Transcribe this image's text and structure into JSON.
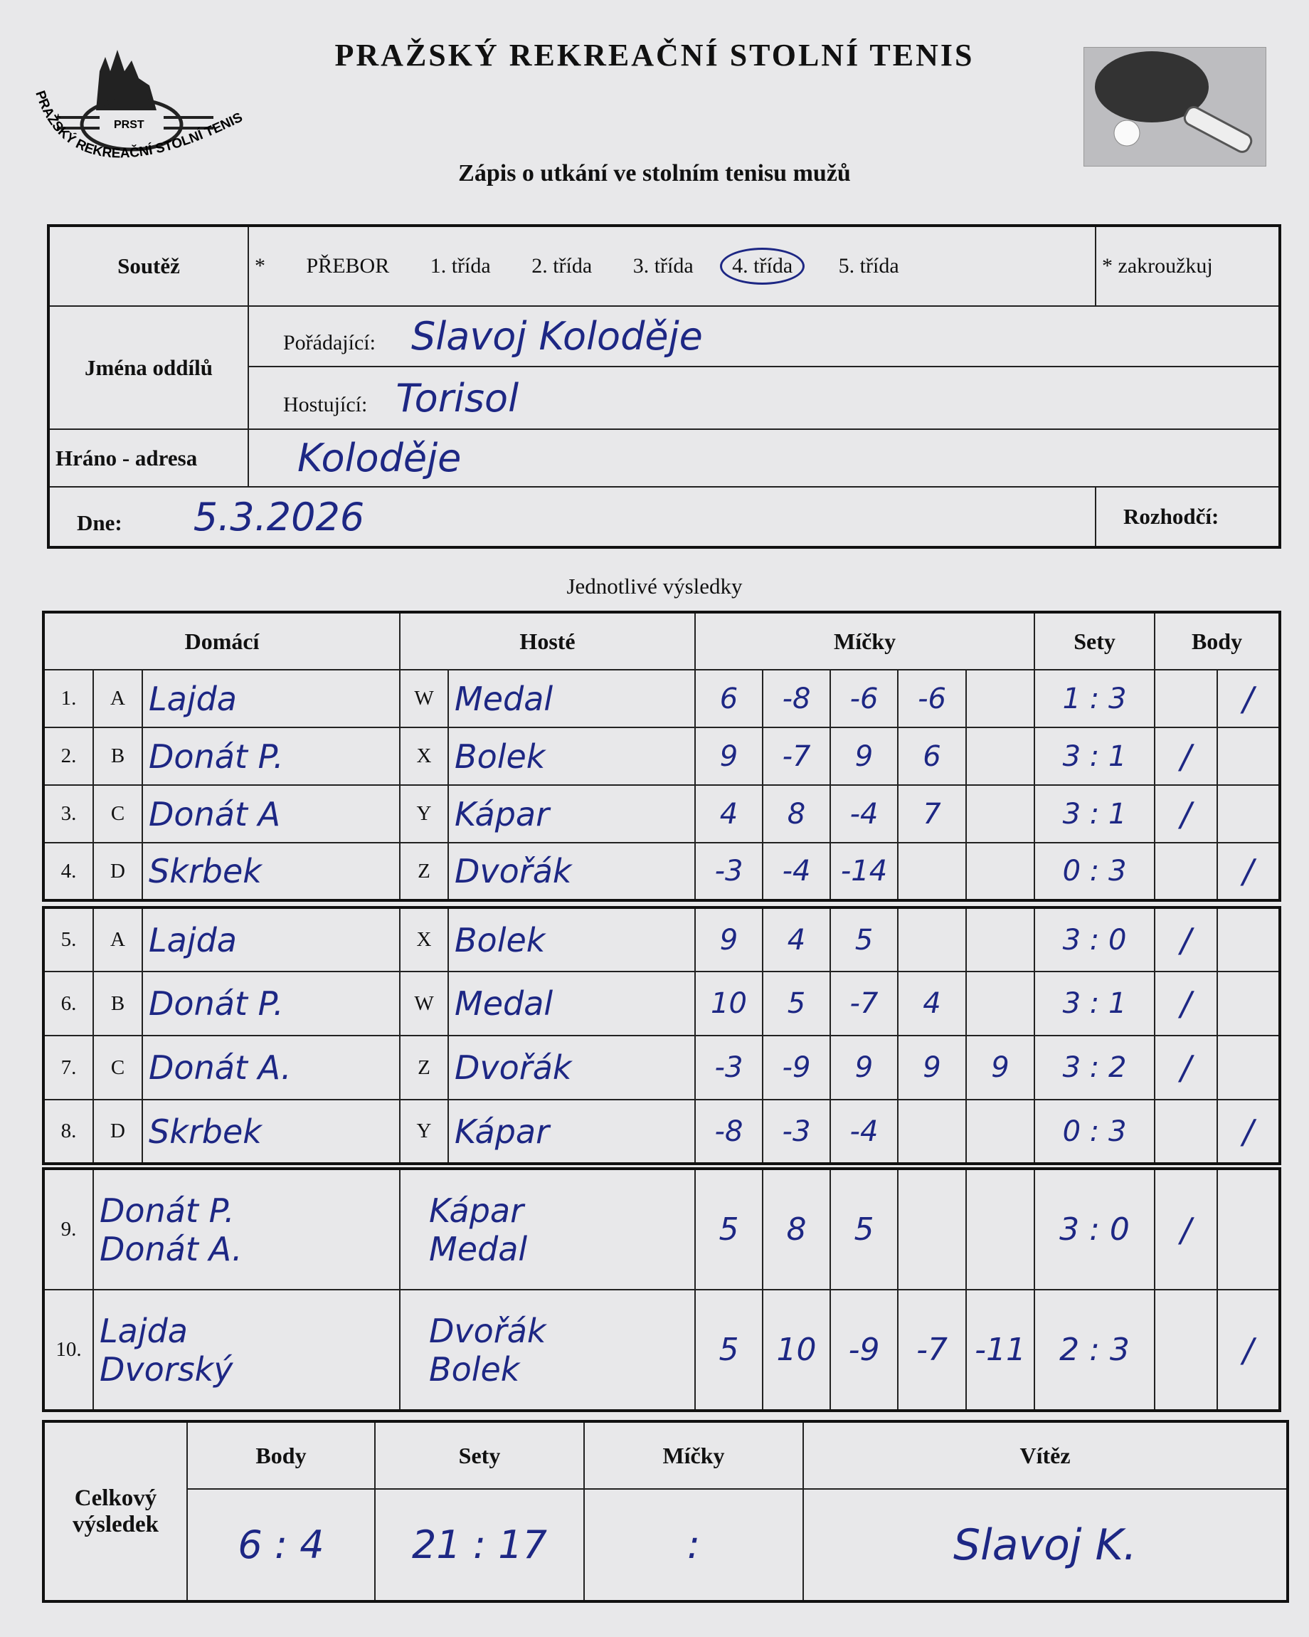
{
  "header": {
    "title": "PRAŽSKÝ REKREAČNÍ STOLNÍ TENIS",
    "subtitle": "Zápis o utkání ve stolním tenisu mužů",
    "logo_text": "PRST",
    "logo_ring_text": "PRAŽSKÝ REKREAČNÍ STOLNÍ TENIS",
    "photo_icon": "ping-pong-paddle-icon"
  },
  "form": {
    "competition_label": "Soutěž",
    "asterisk": "*",
    "classes": [
      "PŘEBOR",
      "1. třída",
      "2. třída",
      "3. třída",
      "4. třída",
      "5. třída"
    ],
    "selected_class": "4. třída",
    "circle_note": "* zakroužkuj",
    "clubs_label": "Jména oddílů",
    "organizer_label": "Pořádající:",
    "organizer_value": "Slavoj Koloděje",
    "guest_label": "Hostující:",
    "guest_value": "Torisol",
    "venue_label": "Hráno - adresa",
    "venue_value": "Koloděje",
    "date_label": "Dne:",
    "date_value": "5.3.2026",
    "referee_label": "Rozhodčí:",
    "referee_value": ""
  },
  "results": {
    "section_title": "Jednotlivé výsledky",
    "headers": {
      "home": "Domácí",
      "guest": "Hosté",
      "balls": "Míčky",
      "sets": "Sety",
      "points": "Body"
    },
    "matches": [
      {
        "no": "1.",
        "hl": "A",
        "home": "Lajda",
        "gl": "W",
        "guest": "Medal",
        "balls": [
          "6",
          "-8",
          "-6",
          "-6",
          ""
        ],
        "sets": "1 : 3",
        "ph": "",
        "pg": "/"
      },
      {
        "no": "2.",
        "hl": "B",
        "home": "Donát P.",
        "gl": "X",
        "guest": "Bolek",
        "balls": [
          "9",
          "-7",
          "9",
          "6",
          ""
        ],
        "sets": "3 : 1",
        "ph": "/",
        "pg": ""
      },
      {
        "no": "3.",
        "hl": "C",
        "home": "Donát A",
        "gl": "Y",
        "guest": "Kápar",
        "balls": [
          "4",
          "8",
          "-4",
          "7",
          ""
        ],
        "sets": "3 : 1",
        "ph": "/",
        "pg": ""
      },
      {
        "no": "4.",
        "hl": "D",
        "home": "Skrbek",
        "gl": "Z",
        "guest": "Dvořák",
        "balls": [
          "-3",
          "-4",
          "-14",
          "",
          ""
        ],
        "sets": "0 : 3",
        "ph": "",
        "pg": "/"
      },
      {
        "no": "5.",
        "hl": "A",
        "home": "Lajda",
        "gl": "X",
        "guest": "Bolek",
        "balls": [
          "9",
          "4",
          "5",
          "",
          ""
        ],
        "sets": "3 : 0",
        "ph": "/",
        "pg": ""
      },
      {
        "no": "6.",
        "hl": "B",
        "home": "Donát P.",
        "gl": "W",
        "guest": "Medal",
        "balls": [
          "10",
          "5",
          "-7",
          "4",
          ""
        ],
        "sets": "3 : 1",
        "ph": "/",
        "pg": ""
      },
      {
        "no": "7.",
        "hl": "C",
        "home": "Donát A.",
        "gl": "Z",
        "guest": "Dvořák",
        "balls": [
          "-3",
          "-9",
          "9",
          "9",
          "9"
        ],
        "sets": "3 : 2",
        "ph": "/",
        "pg": ""
      },
      {
        "no": "8.",
        "hl": "D",
        "home": "Skrbek",
        "gl": "Y",
        "guest": "Kápar",
        "balls": [
          "-8",
          "-3",
          "-4",
          "",
          ""
        ],
        "sets": "0 : 3",
        "ph": "",
        "pg": "/"
      }
    ],
    "doubles": [
      {
        "no": "9.",
        "home": [
          "Donát P.",
          "Donát A."
        ],
        "guest": [
          "Kápar",
          "Medal"
        ],
        "balls": [
          "5",
          "8",
          "5",
          "",
          ""
        ],
        "sets": "3 : 0",
        "ph": "/",
        "pg": ""
      },
      {
        "no": "10.",
        "home": [
          "Lajda",
          "Dvorský"
        ],
        "guest": [
          "Dvořák",
          "Bolek"
        ],
        "balls": [
          "5",
          "10",
          "-9",
          "-7",
          "-11"
        ],
        "sets": "2 : 3",
        "ph": "",
        "pg": "/"
      }
    ]
  },
  "summary": {
    "label": "Celkový výsledek",
    "points_label": "Body",
    "sets_label": "Sety",
    "balls_label": "Míčky",
    "winner_label": "Vítěz",
    "points_value": "6 : 4",
    "sets_value": "21 : 17",
    "balls_value": ":",
    "winner_value": "Slavoj K."
  }
}
